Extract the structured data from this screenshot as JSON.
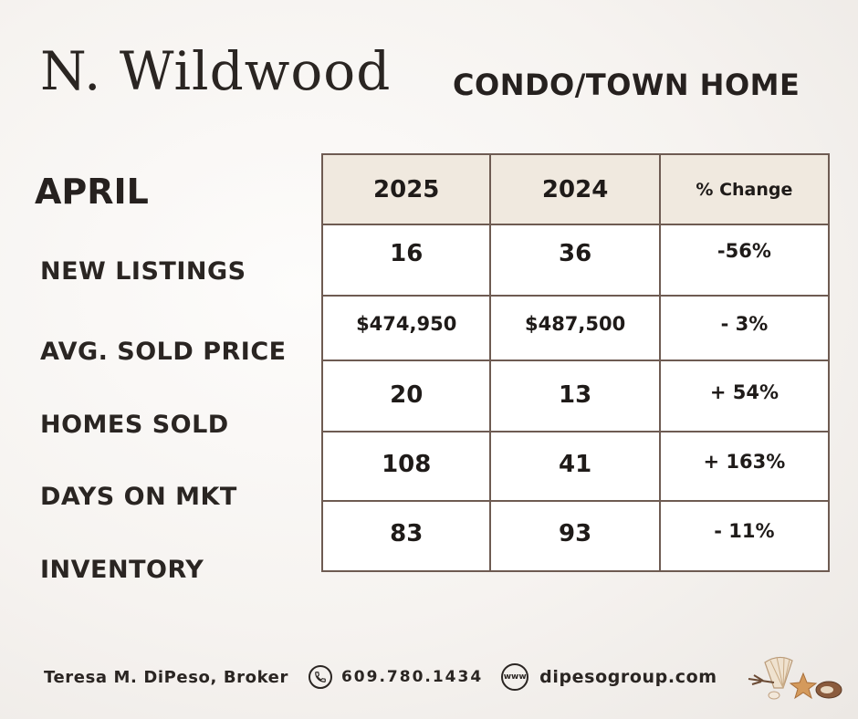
{
  "header": {
    "city": "N. Wildwood",
    "property_type": "CONDO/TOWN HOME"
  },
  "period": "APRIL",
  "table": {
    "columns": [
      "2025",
      "2024",
      "% Change"
    ],
    "rows": [
      {
        "label": "NEW LISTINGS",
        "values": [
          "16",
          "36",
          "-56%"
        ]
      },
      {
        "label": "AVG. SOLD PRICE",
        "values": [
          "$474,950",
          "$487,500",
          "- 3%"
        ]
      },
      {
        "label": "HOMES SOLD",
        "values": [
          "20",
          "13",
          "+ 54%"
        ]
      },
      {
        "label": "DAYS ON MKT",
        "values": [
          "108",
          "41",
          "+ 163%"
        ]
      },
      {
        "label": "INVENTORY",
        "values": [
          "83",
          "93",
          "- 11%"
        ]
      }
    ]
  },
  "footer": {
    "broker": "Teresa M. DiPeso, Broker",
    "phone": "609.780.1434",
    "website": "dipesogroup.com",
    "www_icon_text": "www"
  },
  "icons": {
    "phone": "phone-icon",
    "web": "globe-icon",
    "decoration": "seashells-icon"
  },
  "colors": {
    "table_header_bg": "#f0e9df",
    "table_border": "#6e5b52",
    "text": "#2a2522"
  }
}
